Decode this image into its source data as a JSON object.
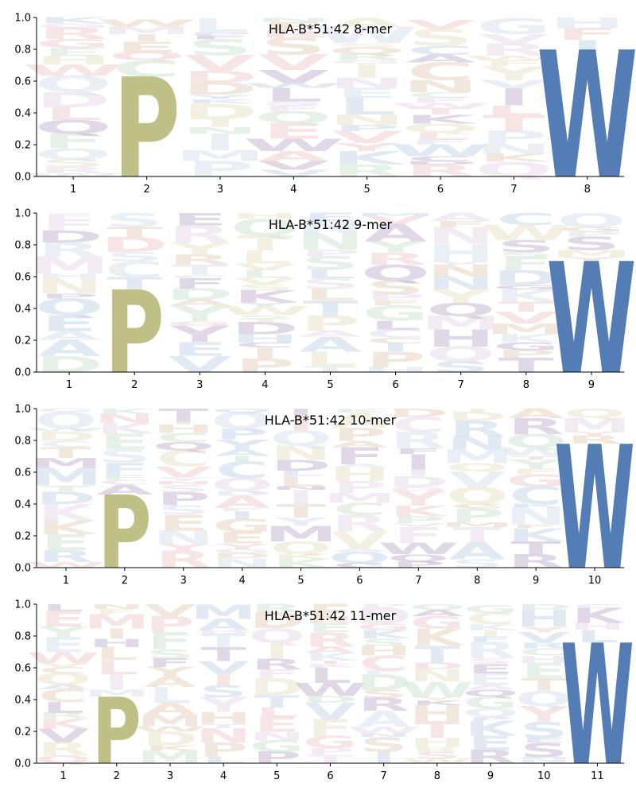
{
  "colors": {
    "P": "#bcbd7f",
    "W": "#4a76b0",
    "faint_palette": [
      "#c9b8d4",
      "#c8d7ea",
      "#cfe6d2",
      "#e8d3c0",
      "#eadbe9",
      "#d9e1ee",
      "#e9e3c9",
      "#f0d0d0"
    ]
  },
  "chart_data": [
    {
      "type": "sequence-logo",
      "title": "HLA-B*51:42 8-mer",
      "positions": [
        "1",
        "2",
        "3",
        "4",
        "5",
        "6",
        "7",
        "8"
      ],
      "ylim": [
        0,
        1.0
      ],
      "yticks": [
        "0.0",
        "0.2",
        "0.4",
        "0.6",
        "0.8",
        "1.0"
      ],
      "dominant": [
        {
          "position": "2",
          "letter": "P",
          "height": 0.63
        },
        {
          "position": "8",
          "letter": "W",
          "height": 0.8
        }
      ]
    },
    {
      "type": "sequence-logo",
      "title": "HLA-B*51:42 9-mer",
      "positions": [
        "1",
        "2",
        "3",
        "4",
        "5",
        "6",
        "7",
        "8",
        "9"
      ],
      "ylim": [
        0,
        1.0
      ],
      "yticks": [
        "0.0",
        "0.2",
        "0.4",
        "0.6",
        "0.8",
        "1.0"
      ],
      "dominant": [
        {
          "position": "2",
          "letter": "P",
          "height": 0.52
        },
        {
          "position": "9",
          "letter": "W",
          "height": 0.7
        }
      ]
    },
    {
      "type": "sequence-logo",
      "title": "HLA-B*51:42 10-mer",
      "positions": [
        "1",
        "2",
        "3",
        "4",
        "5",
        "6",
        "7",
        "8",
        "9",
        "10"
      ],
      "ylim": [
        0,
        1.0
      ],
      "yticks": [
        "0.0",
        "0.2",
        "0.4",
        "0.6",
        "0.8",
        "1.0"
      ],
      "dominant": [
        {
          "position": "2",
          "letter": "P",
          "height": 0.46
        },
        {
          "position": "10",
          "letter": "W",
          "height": 0.78
        }
      ]
    },
    {
      "type": "sequence-logo",
      "title": "HLA-B*51:42 11-mer",
      "positions": [
        "1",
        "2",
        "3",
        "4",
        "5",
        "6",
        "7",
        "8",
        "9",
        "10",
        "11"
      ],
      "ylim": [
        0,
        1.0
      ],
      "yticks": [
        "0.0",
        "0.2",
        "0.4",
        "0.6",
        "0.8",
        "1.0"
      ],
      "dominant": [
        {
          "position": "2",
          "letter": "P",
          "height": 0.42
        },
        {
          "position": "11",
          "letter": "W",
          "height": 0.76
        }
      ]
    }
  ]
}
